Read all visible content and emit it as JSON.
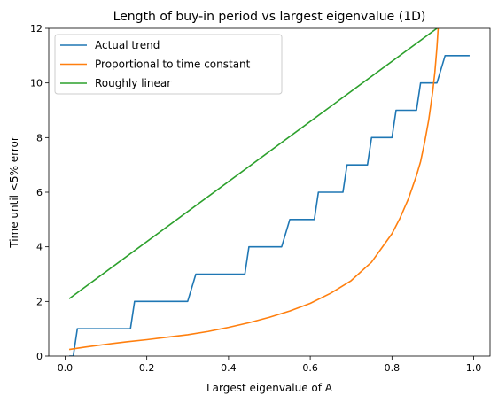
{
  "chart_data": {
    "type": "line",
    "title": "Length of buy-in period vs largest eigenvalue (1D)",
    "xlabel": "Largest eigenvalue of A",
    "ylabel": "Time until <5% error",
    "xlim": [
      -0.04,
      1.04
    ],
    "ylim": [
      0,
      12
    ],
    "xticks": [
      0.0,
      0.2,
      0.4,
      0.6,
      0.8,
      1.0
    ],
    "xtick_labels": [
      "0.0",
      "0.2",
      "0.4",
      "0.6",
      "0.8",
      "1.0"
    ],
    "yticks": [
      0,
      2,
      4,
      6,
      8,
      10,
      12
    ],
    "ytick_labels": [
      "0",
      "2",
      "4",
      "6",
      "8",
      "10",
      "12"
    ],
    "grid": false,
    "legend_position": "top-left",
    "series": [
      {
        "name": "Actual trend",
        "color": "#1f77b4",
        "x": [
          0.01,
          0.02,
          0.02,
          0.03,
          0.03,
          0.16,
          0.16,
          0.17,
          0.17,
          0.3,
          0.3,
          0.32,
          0.32,
          0.44,
          0.44,
          0.45,
          0.45,
          0.53,
          0.53,
          0.55,
          0.55,
          0.61,
          0.61,
          0.62,
          0.62,
          0.68,
          0.68,
          0.69,
          0.69,
          0.74,
          0.74,
          0.75,
          0.75,
          0.8,
          0.8,
          0.81,
          0.81,
          0.86,
          0.86,
          0.87,
          0.87,
          0.91,
          0.91,
          0.93,
          0.93,
          0.99
        ],
        "y": [
          0,
          0,
          0,
          1,
          1,
          1,
          1,
          2,
          2,
          2,
          2,
          3,
          3,
          3,
          3,
          4,
          4,
          4,
          4,
          5,
          5,
          5,
          5,
          6,
          6,
          6,
          6,
          7,
          7,
          7,
          7,
          8,
          8,
          8,
          8,
          9,
          9,
          9,
          9,
          10,
          10,
          10,
          10,
          11,
          11,
          11
        ]
      },
      {
        "name": "Proportional to time constant",
        "color": "#ff7f0e",
        "x": [
          0.01,
          0.05,
          0.1,
          0.15,
          0.2,
          0.25,
          0.3,
          0.35,
          0.4,
          0.45,
          0.5,
          0.55,
          0.6,
          0.65,
          0.7,
          0.75,
          0.8,
          0.82,
          0.84,
          0.86,
          0.87,
          0.88,
          0.89,
          0.9,
          0.905,
          0.91,
          0.913
        ],
        "y": [
          0.24,
          0.33,
          0.43,
          0.52,
          0.6,
          0.69,
          0.78,
          0.9,
          1.05,
          1.22,
          1.42,
          1.65,
          1.93,
          2.3,
          2.76,
          3.44,
          4.48,
          5.06,
          5.75,
          6.61,
          7.12,
          7.83,
          8.65,
          9.72,
          10.4,
          11.3,
          12.0
        ]
      },
      {
        "name": "Roughly linear",
        "color": "#2ca02c",
        "x": [
          0.01,
          0.91
        ],
        "y": [
          2.1,
          12.0
        ]
      }
    ]
  }
}
